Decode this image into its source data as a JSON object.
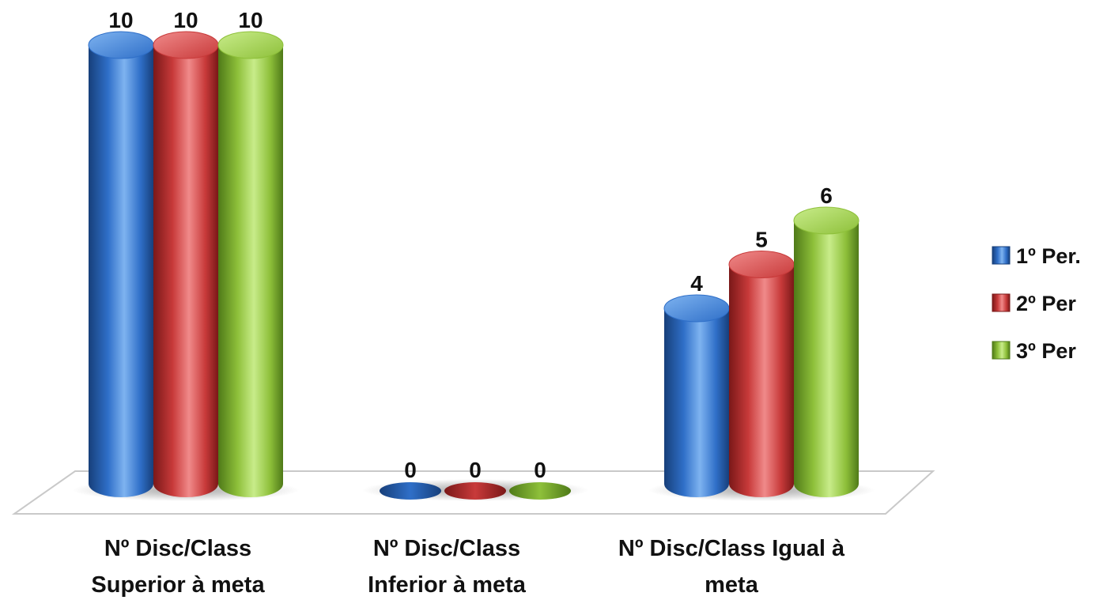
{
  "chart_data": {
    "type": "bar",
    "style": "3d-cylinder",
    "categories": [
      [
        "Nº Disc/Class",
        "Superior à meta"
      ],
      [
        "Nº Disc/Class",
        "Inferior à meta"
      ],
      [
        "Nº Disc/Class Igual à",
        "meta"
      ]
    ],
    "series": [
      {
        "name": "1º Per.",
        "values": [
          10,
          0,
          4
        ],
        "color": "#2f6fc8",
        "dark": "#173f7a",
        "light": "#7eb3f0"
      },
      {
        "name": "2º Per",
        "values": [
          10,
          0,
          5
        ],
        "color": "#c83a3a",
        "dark": "#7a1818",
        "light": "#f08a8a"
      },
      {
        "name": "3º Per",
        "values": [
          10,
          0,
          6
        ],
        "color": "#8ec03a",
        "dark": "#4f7a18",
        "light": "#c8ec8a"
      }
    ],
    "ylim": [
      0,
      10
    ],
    "data_labels": true,
    "grid": false,
    "legend": "right"
  }
}
